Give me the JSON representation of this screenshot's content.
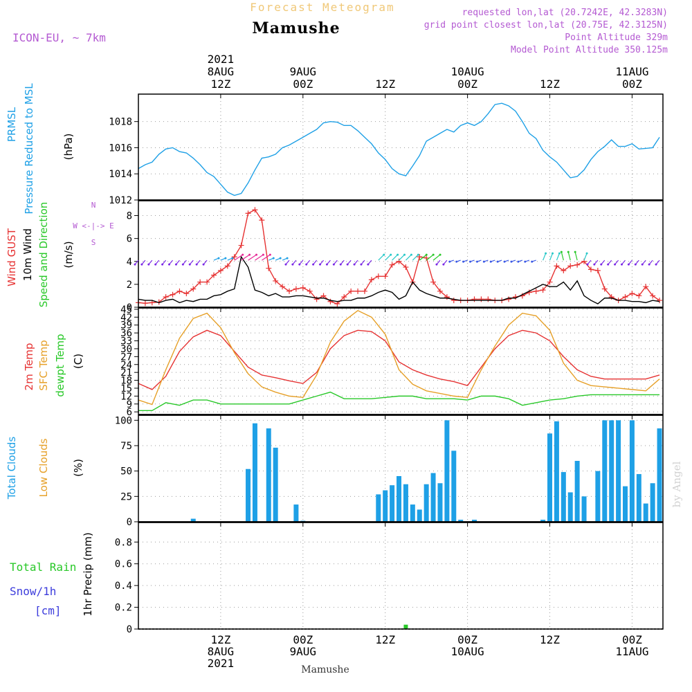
{
  "header": {
    "subtitle": "Forecast Meteogram",
    "location": "Mamushe",
    "model": "ICON-EU, ~ 7km",
    "requested": "requested lon,lat (20.7242E, 42.3283N)",
    "grid": "grid point closest lon,lat (20.75E, 42.3125N)",
    "point_alt": "Point Altitude 329m",
    "model_alt": "Model Point Altitude 350.125m",
    "footer": "Mamushe",
    "credit": "by Angel"
  },
  "time_axis": {
    "top": [
      {
        "h": 12,
        "lines": [
          "2021",
          "8AUG",
          "12Z"
        ]
      },
      {
        "h": 24,
        "lines": [
          "9AUG",
          "00Z"
        ]
      },
      {
        "h": 36,
        "lines": [
          "12Z"
        ]
      },
      {
        "h": 48,
        "lines": [
          "10AUG",
          "00Z"
        ]
      },
      {
        "h": 60,
        "lines": [
          "12Z"
        ]
      },
      {
        "h": 72,
        "lines": [
          "11AUG",
          "00Z"
        ]
      }
    ],
    "bottom": [
      {
        "h": 12,
        "lines": [
          "12Z",
          "8AUG",
          "2021"
        ]
      },
      {
        "h": 24,
        "lines": [
          "00Z",
          "9AUG"
        ]
      },
      {
        "h": 36,
        "lines": [
          "12Z"
        ]
      },
      {
        "h": 48,
        "lines": [
          "00Z",
          "10AUG"
        ]
      },
      {
        "h": 60,
        "lines": [
          "12Z"
        ]
      },
      {
        "h": 72,
        "lines": [
          "00Z",
          "11AUG"
        ]
      }
    ]
  },
  "colors": {
    "pressure": "#1ea0e6",
    "gust": "#e63232",
    "wind": "#000000",
    "wind_dir": "#28c828",
    "sfc_temp": "#e6a028",
    "dewpt": "#28c828",
    "total_clouds": "#1ea0e6",
    "low_clouds": "#e6a028",
    "rain": "#28c828",
    "snow": "#3c3cdc",
    "header": "#b45ad2",
    "title_orange": "#f0c878",
    "credit": "#d2d2d2"
  },
  "chart_data": [
    {
      "type": "line",
      "name": "pressure",
      "title": "PRMSL Pressure Reduced to MSL",
      "label_lines": [
        "PRMSL",
        "Pressure Reduced to MSL"
      ],
      "ylabel": "(hPa)",
      "yticks": [
        1012,
        1014,
        1016,
        1018
      ],
      "ylim": [
        1012,
        1020.1
      ],
      "series": [
        {
          "name": "PRMSL",
          "x": [
            0,
            1,
            2,
            3,
            4,
            5,
            6,
            7,
            8,
            9,
            10,
            11,
            12,
            13,
            14,
            15,
            16,
            17,
            18,
            19,
            20,
            21,
            22,
            23,
            24,
            25,
            26,
            27,
            28,
            29,
            30,
            31,
            32,
            33,
            34,
            35,
            36,
            37,
            38,
            39,
            40,
            41,
            42,
            43,
            44,
            45,
            46,
            47,
            48,
            49,
            50,
            51,
            52,
            53,
            54,
            55,
            56,
            57,
            58,
            59,
            60,
            61,
            62,
            63,
            64,
            65,
            66,
            67,
            68,
            69,
            70,
            71,
            72,
            73,
            74,
            75,
            76
          ],
          "values": [
            1014.4,
            1014.7,
            1014.9,
            1015.5,
            1015.9,
            1016.0,
            1015.7,
            1015.6,
            1015.2,
            1014.7,
            1014.1,
            1013.8,
            1013.2,
            1012.6,
            1012.35,
            1012.5,
            1013.3,
            1014.3,
            1015.2,
            1015.3,
            1015.5,
            1016.0,
            1016.2,
            1016.5,
            1016.8,
            1017.1,
            1017.4,
            1017.9,
            1018.0,
            1017.95,
            1017.7,
            1017.7,
            1017.3,
            1016.8,
            1016.3,
            1015.6,
            1015.1,
            1014.4,
            1014.0,
            1013.85,
            1014.6,
            1015.4,
            1016.5,
            1016.8,
            1017.1,
            1017.4,
            1017.2,
            1017.7,
            1017.9,
            1017.7,
            1018.0,
            1018.6,
            1019.3,
            1019.4,
            1019.2,
            1018.8,
            1018.0,
            1017.1,
            1016.7,
            1015.8,
            1015.3,
            1014.9,
            1014.3,
            1013.7,
            1013.8,
            1014.3,
            1015.1,
            1015.7,
            1016.1,
            1016.6,
            1016.1,
            1016.1,
            1016.3,
            1015.9,
            1015.95,
            1016.0,
            1016.8
          ]
        }
      ]
    },
    {
      "type": "line",
      "name": "wind",
      "title": "Wind GUST / 10m Wind Speed and Direction",
      "label_lines": [
        "Wind GUST",
        "10m Wind",
        "Speed and Direction"
      ],
      "ylabel": "(m/s)",
      "compass": "N / W <-|-> E / S",
      "yticks": [
        0,
        2,
        4,
        6,
        8
      ],
      "ylim": [
        0,
        9.3
      ],
      "series": [
        {
          "name": "Wind GUST",
          "x": [
            0,
            1,
            2,
            3,
            4,
            5,
            6,
            7,
            8,
            9,
            10,
            11,
            12,
            13,
            14,
            15,
            16,
            17,
            18,
            19,
            20,
            21,
            22,
            23,
            24,
            25,
            26,
            27,
            28,
            29,
            30,
            31,
            32,
            33,
            34,
            35,
            36,
            37,
            38,
            39,
            40,
            41,
            42,
            43,
            44,
            45,
            46,
            47,
            48,
            49,
            50,
            51,
            52,
            53,
            54,
            55,
            56,
            57,
            58,
            59,
            60,
            61,
            62,
            63,
            64,
            65,
            66,
            67,
            68,
            69,
            70,
            71,
            72,
            73,
            74,
            75,
            76
          ],
          "values": [
            0.4,
            0.35,
            0.4,
            0.45,
            0.9,
            1.1,
            1.4,
            1.2,
            1.6,
            2.2,
            2.2,
            2.8,
            3.2,
            3.6,
            4.4,
            5.4,
            8.2,
            8.5,
            7.6,
            3.4,
            2.3,
            1.8,
            1.4,
            1.6,
            1.7,
            1.4,
            0.7,
            1.0,
            0.5,
            0.3,
            0.9,
            1.4,
            1.4,
            1.4,
            2.4,
            2.7,
            2.7,
            3.7,
            4.0,
            3.5,
            2.2,
            4.4,
            4.3,
            2.2,
            1.4,
            0.9,
            0.6,
            0.6,
            0.6,
            0.7,
            0.7,
            0.7,
            0.6,
            0.6,
            0.7,
            0.9,
            1.0,
            1.3,
            1.4,
            1.5,
            2.2,
            3.6,
            3.2,
            3.6,
            3.7,
            4.0,
            3.3,
            3.2,
            1.6,
            0.9,
            0.6,
            0.9,
            1.2,
            1.0,
            1.8,
            1.0,
            0.6
          ]
        },
        {
          "name": "10m Wind",
          "x": [
            0,
            1,
            2,
            3,
            4,
            5,
            6,
            7,
            8,
            9,
            10,
            11,
            12,
            13,
            14,
            15,
            16,
            17,
            18,
            19,
            20,
            21,
            22,
            23,
            24,
            25,
            26,
            27,
            28,
            29,
            30,
            31,
            32,
            33,
            34,
            35,
            36,
            37,
            38,
            39,
            40,
            41,
            42,
            43,
            44,
            45,
            46,
            47,
            48,
            49,
            50,
            51,
            52,
            53,
            54,
            55,
            56,
            57,
            58,
            59,
            60,
            61,
            62,
            63,
            64,
            65,
            66,
            67,
            68,
            69,
            70,
            71,
            72,
            73,
            74,
            75,
            76
          ],
          "values": [
            0.7,
            0.6,
            0.6,
            0.4,
            0.6,
            0.7,
            0.4,
            0.6,
            0.5,
            0.7,
            0.7,
            1.0,
            1.1,
            1.4,
            1.6,
            4.4,
            3.5,
            1.5,
            1.3,
            1.0,
            1.2,
            0.9,
            0.9,
            1.0,
            1.0,
            0.9,
            0.8,
            0.8,
            0.6,
            0.5,
            0.6,
            0.6,
            0.8,
            0.8,
            1.0,
            1.3,
            1.5,
            1.3,
            0.7,
            1.0,
            2.2,
            1.5,
            1.2,
            1.0,
            0.8,
            0.8,
            0.7,
            0.6,
            0.6,
            0.6,
            0.6,
            0.6,
            0.6,
            0.6,
            0.8,
            0.8,
            1.1,
            1.4,
            1.7,
            2.0,
            1.8,
            1.8,
            2.2,
            1.5,
            2.3,
            1.0,
            0.6,
            0.3,
            0.8,
            0.8,
            0.6,
            0.6,
            0.5,
            0.5,
            0.4,
            0.6,
            0.5
          ]
        }
      ]
    },
    {
      "type": "line",
      "name": "temperature",
      "title": "2m Temp / SFC Temp / dewpt Temp",
      "label_lines": [
        "2m Temp",
        "SFC Temp",
        "dewpt Temp"
      ],
      "ylabel": "(C)",
      "yticks": [
        6,
        9,
        12,
        15,
        18,
        21,
        24,
        27,
        30,
        33,
        36,
        39,
        42,
        45
      ],
      "ylim": [
        5,
        45.5
      ],
      "series": [
        {
          "name": "2m Temp",
          "x": [
            0,
            2,
            4,
            6,
            8,
            10,
            12,
            14,
            16,
            18,
            20,
            22,
            24,
            26,
            28,
            30,
            32,
            34,
            36,
            38,
            40,
            42,
            44,
            46,
            48,
            50,
            52,
            54,
            56,
            58,
            60,
            62,
            64,
            66,
            68,
            70,
            72,
            74,
            76
          ],
          "values": [
            16.8,
            14.5,
            19.5,
            29,
            34.5,
            37,
            35,
            29,
            23,
            20,
            19,
            17.8,
            16.8,
            21,
            30,
            35,
            37,
            36.5,
            33,
            25,
            22,
            20,
            18.5,
            17.5,
            16,
            23,
            30,
            35,
            37,
            36,
            33,
            27,
            22,
            19.5,
            18.5,
            18.5,
            18.5,
            18.5,
            20
          ]
        },
        {
          "name": "SFC Temp",
          "x": [
            0,
            2,
            4,
            6,
            8,
            10,
            12,
            14,
            16,
            18,
            20,
            22,
            24,
            26,
            28,
            30,
            32,
            34,
            36,
            38,
            40,
            42,
            44,
            46,
            48,
            50,
            52,
            54,
            56,
            58,
            60,
            62,
            64,
            66,
            68,
            70,
            72,
            74,
            76
          ],
          "values": [
            10.5,
            8.8,
            22,
            34,
            41.5,
            43.5,
            38,
            28.5,
            20.5,
            15.5,
            13.5,
            12,
            11.5,
            20,
            32.5,
            40.5,
            44.5,
            42,
            35.5,
            22,
            16.5,
            14,
            13,
            12,
            11.5,
            22,
            31,
            39,
            43.5,
            42.5,
            37,
            24.5,
            18,
            16,
            15.5,
            15,
            14.5,
            14,
            18.5
          ]
        },
        {
          "name": "dewpt Temp",
          "x": [
            0,
            2,
            4,
            6,
            8,
            10,
            12,
            14,
            16,
            18,
            20,
            22,
            24,
            26,
            28,
            30,
            32,
            34,
            36,
            38,
            40,
            42,
            44,
            46,
            48,
            50,
            52,
            54,
            56,
            58,
            60,
            62,
            64,
            66,
            68,
            70,
            72,
            74,
            76
          ],
          "values": [
            6.5,
            6.5,
            9.5,
            8.5,
            10.5,
            10.5,
            9,
            9,
            9,
            9,
            9,
            9,
            10.5,
            12,
            13.5,
            11,
            11,
            11,
            11.5,
            12,
            12,
            11,
            11,
            11,
            10.5,
            12,
            12,
            11,
            8.5,
            9.5,
            10.5,
            11,
            12,
            12.5,
            12.5,
            12.5,
            12.5,
            12.5,
            12.5
          ]
        }
      ]
    },
    {
      "type": "bar",
      "name": "clouds",
      "title": "Total Clouds / Low Clouds",
      "label_lines": [
        "Total Clouds",
        "Low Clouds"
      ],
      "ylabel": "(%)",
      "yticks": [
        0,
        25,
        50,
        75,
        100
      ],
      "ylim": [
        0,
        105
      ],
      "series": [
        {
          "name": "Total Clouds",
          "x": [
            0,
            1,
            2,
            3,
            4,
            5,
            6,
            7,
            8,
            9,
            10,
            11,
            12,
            13,
            14,
            15,
            16,
            17,
            18,
            19,
            20,
            21,
            22,
            23,
            24,
            25,
            26,
            27,
            28,
            29,
            30,
            31,
            32,
            33,
            34,
            35,
            36,
            37,
            38,
            39,
            40,
            41,
            42,
            43,
            44,
            45,
            46,
            47,
            48,
            49,
            50,
            51,
            52,
            53,
            54,
            55,
            56,
            57,
            58,
            59,
            60,
            61,
            62,
            63,
            64,
            65,
            66,
            67,
            68,
            69,
            70,
            71,
            72,
            73,
            74,
            75,
            76
          ],
          "values": [
            0,
            0,
            0,
            0,
            0,
            0,
            0,
            0,
            3,
            0,
            0,
            0,
            0,
            0,
            0,
            0,
            52,
            97,
            0,
            92,
            73,
            0,
            0,
            17,
            1,
            0,
            0,
            0,
            0,
            0,
            0,
            0,
            0,
            0,
            0,
            27,
            31,
            36,
            45,
            37,
            17,
            12,
            37,
            48,
            38,
            100,
            70,
            2,
            0,
            2,
            0,
            0,
            0,
            0,
            0,
            0,
            0,
            0,
            0,
            2,
            87,
            99,
            49,
            29,
            60,
            25,
            0,
            50,
            100,
            100,
            100,
            35,
            100,
            47,
            18,
            38,
            92
          ]
        },
        {
          "name": "Low Clouds",
          "x": [
            0,
            76
          ],
          "values": [
            0,
            0
          ]
        }
      ]
    },
    {
      "type": "bar",
      "name": "precip",
      "title": "Total Rain / Snow/1h [cm]",
      "label_lines": [
        "Total  Rain",
        "Snow/1h",
        "[cm]"
      ],
      "ylabel": "1hr Precip (mm)",
      "yticks": [
        0,
        0.2,
        0.4,
        0.6,
        0.8
      ],
      "ylim": [
        0,
        0.98
      ],
      "series": [
        {
          "name": "Total Rain",
          "x": [
            39
          ],
          "values": [
            0.04
          ]
        },
        {
          "name": "Snow/1h",
          "x": [],
          "values": []
        }
      ]
    }
  ]
}
